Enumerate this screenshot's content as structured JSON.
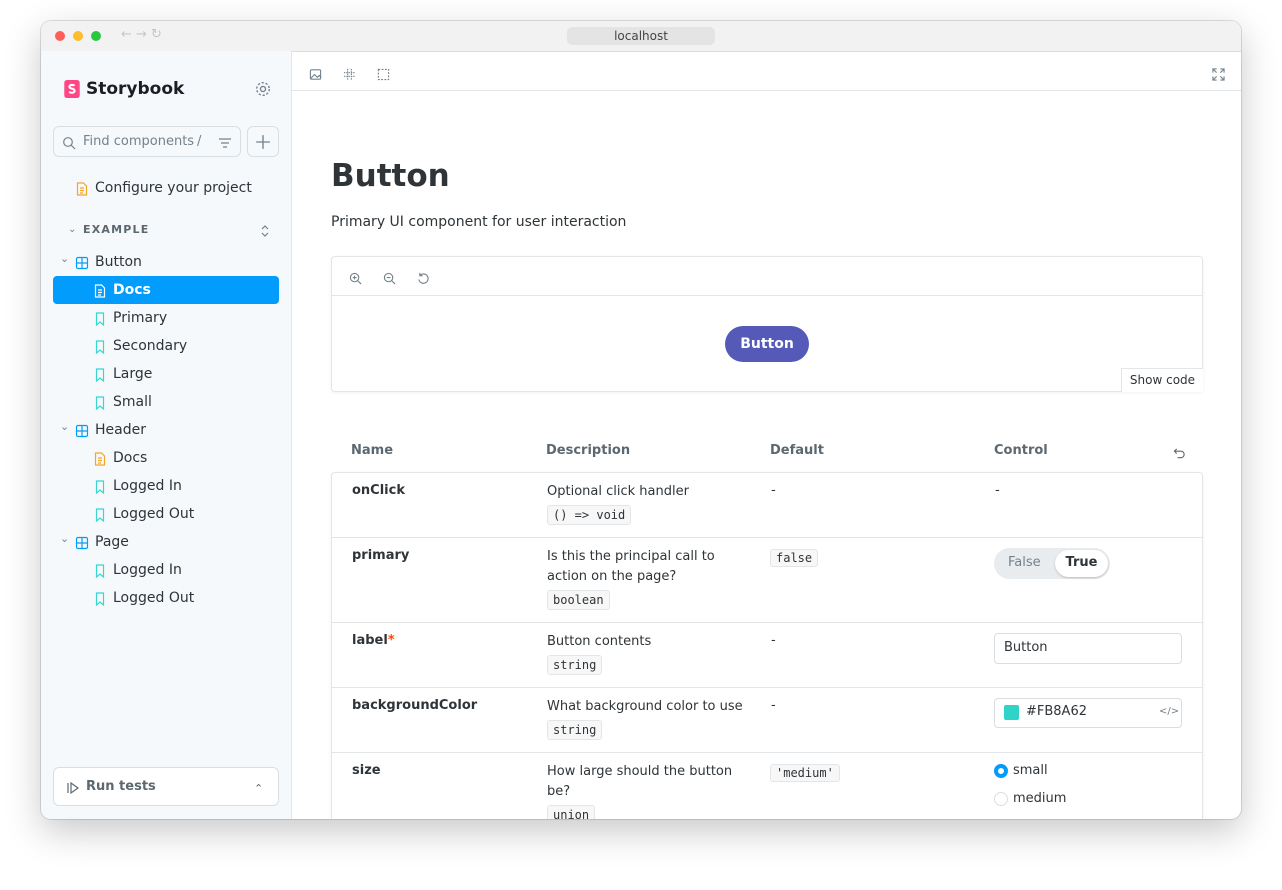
{
  "browser": {
    "url": "localhost"
  },
  "sidebar": {
    "brand": "Storybook",
    "search_placeholder": "Find components",
    "search_shortcut": "/",
    "configure": "Configure your project",
    "section": "EXAMPLE",
    "tree": [
      {
        "label": "Button",
        "children": [
          "Docs",
          "Primary",
          "Secondary",
          "Large",
          "Small"
        ]
      },
      {
        "label": "Header",
        "children": [
          "Docs",
          "Logged In",
          "Logged Out"
        ]
      },
      {
        "label": "Page",
        "children": [
          "Logged In",
          "Logged Out"
        ]
      }
    ],
    "run_tests": "Run tests"
  },
  "doc": {
    "title": "Button",
    "subtitle": "Primary UI component for user interaction",
    "preview_button": "Button",
    "show_code": "Show code",
    "table": {
      "headers": [
        "Name",
        "Description",
        "Default",
        "Control"
      ],
      "rows": [
        {
          "name": "onClick",
          "description": "Optional click handler",
          "type": "() => void",
          "default": "-",
          "control": "-"
        },
        {
          "name": "primary",
          "description": "Is this the principal call to action on the page?",
          "type": "boolean",
          "default": "false",
          "toggle": [
            "False",
            "True"
          ]
        },
        {
          "name": "label",
          "required_mark": "*",
          "description": "Button contents",
          "type": "string",
          "default": "-",
          "input": "Button"
        },
        {
          "name": "backgroundColor",
          "description": "What background color to use",
          "type": "string",
          "default": "-",
          "color": "#FB8A62"
        },
        {
          "name": "size",
          "description": "How large should the button be?",
          "type": "union",
          "default": "'medium'",
          "radio": [
            "small",
            "medium"
          ]
        }
      ]
    }
  }
}
